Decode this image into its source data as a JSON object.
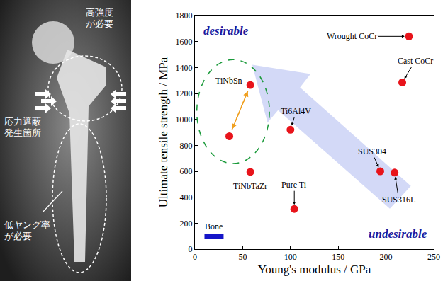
{
  "chart_data": {
    "type": "scatter",
    "x_label": "Young's modulus / GPa",
    "y_label": "Ultimate tensile strength / MPa",
    "xlim": [
      0,
      250
    ],
    "xticks": [
      0,
      50,
      100,
      150,
      200,
      250
    ],
    "ylim": [
      0,
      1800
    ],
    "yticks": [
      0,
      200,
      400,
      600,
      800,
      1000,
      1200,
      1400,
      1600,
      1800
    ],
    "grid": false,
    "series": [
      {
        "color": "#e8141b",
        "marker": "circle",
        "x": [
          224,
          217,
          100,
          58,
          36,
          58,
          104,
          194,
          209
        ],
        "values": [
          1640,
          1285,
          920,
          1265,
          870,
          595,
          310,
          600,
          590
        ],
        "point_labels": [
          "Wrought CoCr",
          "Cast CoCr",
          "Ti6Al4V",
          "TiNbSn",
          null,
          "TiNbTaZr",
          "Pure Ti",
          "SUS304",
          "SUS316L"
        ]
      }
    ],
    "bone": {
      "label": "Bone",
      "x": [
        10,
        30
      ],
      "y": 100,
      "color": "#1515c8"
    },
    "annotations": [
      {
        "text": "desirable"
      },
      {
        "text": "undesirable"
      }
    ]
  },
  "image_panel": {
    "labels": [
      {
        "lines": [
          "高強度",
          "が必要"
        ]
      },
      {
        "lines": [
          "応力遮蔽",
          "発生箇所"
        ]
      },
      {
        "lines": [
          "低ヤング率",
          "が必要"
        ]
      }
    ]
  }
}
